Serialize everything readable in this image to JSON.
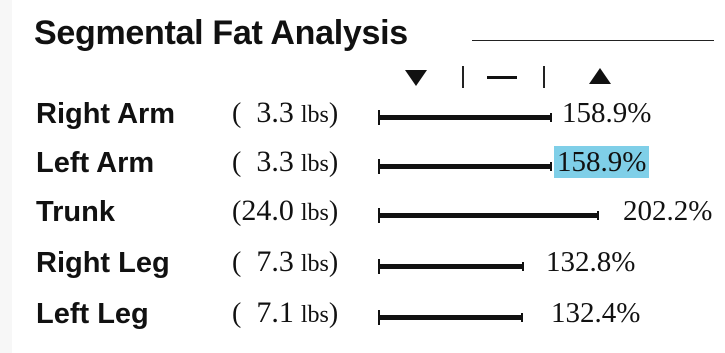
{
  "title": "Segmental Fat Analysis",
  "legend": {
    "low_icon": "triangle-down-icon",
    "normal_icon": "dash-icon",
    "high_icon": "triangle-up-icon"
  },
  "colors": {
    "highlight": "#7fcfe8",
    "bar": "#111111"
  },
  "rows": [
    {
      "label": "Right Arm",
      "open": "(",
      "weight": " 3.3",
      "unit": "lbs",
      "close": ")",
      "percent": "158.9%",
      "percent_value": 158.9,
      "selected": false
    },
    {
      "label": "Left Arm",
      "open": "(",
      "weight": " 3.3",
      "unit": "lbs",
      "close": ")",
      "percent": "158.9%",
      "percent_value": 158.9,
      "selected": true
    },
    {
      "label": "Trunk",
      "open": "(",
      "weight": "24.0",
      "unit": "lbs",
      "close": ")",
      "percent": "202.2%",
      "percent_value": 202.2,
      "selected": false
    },
    {
      "label": "Right Leg",
      "open": "(",
      "weight": " 7.3",
      "unit": "lbs",
      "close": ")",
      "percent": "132.8%",
      "percent_value": 132.8,
      "selected": false
    },
    {
      "label": "Left Leg",
      "open": "(",
      "weight": " 7.1",
      "unit": "lbs",
      "close": ")",
      "percent": "132.4%",
      "percent_value": 132.4,
      "selected": false
    }
  ]
}
